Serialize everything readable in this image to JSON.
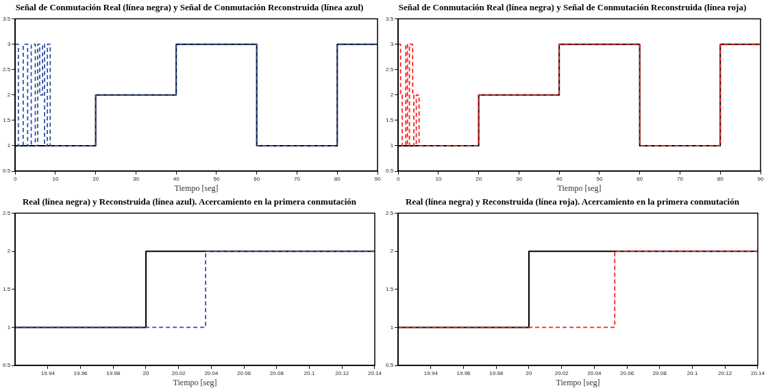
{
  "chart_data": [
    {
      "type": "step",
      "title": "Señal de Conmutación Real (línea negra) y Señal de Conmutación Reconstruida (línea azul)",
      "xlabel": "Tiempo [seg]",
      "xlim": [
        0,
        90
      ],
      "xticks": [
        0,
        10,
        20,
        30,
        40,
        50,
        60,
        70,
        80,
        90
      ],
      "ylim": [
        0.5,
        3.5
      ],
      "yticks": [
        0.5,
        1,
        1.5,
        2,
        2.5,
        3,
        3.5
      ],
      "grid": false,
      "legend": false,
      "marker": "none",
      "series": [
        {
          "color": "#000000",
          "line_style": "solid",
          "x": [
            0,
            20,
            40,
            60,
            80,
            90
          ],
          "values": [
            1,
            2,
            3,
            1,
            3,
            3
          ]
        },
        {
          "color": "#2f4fa8",
          "line_style": "dashed",
          "x": [
            0,
            0.8,
            2,
            3.1,
            4,
            5,
            5.6,
            6.1,
            6.8,
            7.3,
            8,
            8.7,
            9.9,
            20,
            40,
            60,
            80,
            90
          ],
          "values": [
            3,
            1,
            3,
            1,
            3,
            1,
            3,
            2,
            3,
            1,
            3,
            1,
            1,
            2,
            3,
            1,
            3,
            3
          ]
        }
      ]
    },
    {
      "type": "step",
      "title": "Señal de Conmutación Real (línea negra) y Señal de Conmutación Reconstruida (línea roja)",
      "xlabel": "Tiempo [seg]",
      "xlim": [
        0,
        90
      ],
      "xticks": [
        0,
        10,
        20,
        30,
        40,
        50,
        60,
        70,
        80,
        90
      ],
      "ylim": [
        0.5,
        3.5
      ],
      "yticks": [
        0.5,
        1,
        1.5,
        2,
        2.5,
        3,
        3.5
      ],
      "grid": false,
      "legend": false,
      "marker": "none",
      "series": [
        {
          "color": "#000000",
          "line_style": "solid",
          "x": [
            0,
            20,
            40,
            60,
            80,
            90
          ],
          "values": [
            1,
            2,
            3,
            1,
            3,
            3
          ]
        },
        {
          "color": "#ff1a1a",
          "line_style": "dashed",
          "x": [
            0,
            0.6,
            1,
            1.9,
            2.3,
            2.8,
            3.6,
            3.9,
            4.5,
            5.2,
            20,
            40,
            60,
            80,
            90
          ],
          "values": [
            3,
            2,
            1,
            3,
            1,
            3,
            2,
            1,
            2,
            1,
            2,
            3,
            1,
            3,
            3
          ]
        }
      ]
    },
    {
      "type": "step",
      "title": "Real (línea negra) y Reconstruida (línea azul). Acercamiento en la primera conmutación",
      "xlabel": "Tiempo [seg]",
      "xlim": [
        19.92,
        20.14
      ],
      "xticks": [
        19.94,
        19.96,
        19.98,
        20,
        20.02,
        20.04,
        20.06,
        20.08,
        20.1,
        20.12,
        20.14
      ],
      "ylim": [
        0.5,
        2.5
      ],
      "yticks": [
        0.5,
        1,
        1.5,
        2,
        2.5
      ],
      "grid": false,
      "legend": false,
      "marker": "none",
      "series": [
        {
          "color": "#000000",
          "line_style": "solid",
          "x": [
            19.92,
            20,
            20.14
          ],
          "values": [
            1,
            2,
            2
          ]
        },
        {
          "color": "#2f4fa8",
          "line_style": "dashed",
          "x": [
            19.92,
            20.0365,
            20.14
          ],
          "values": [
            1,
            2,
            2
          ]
        }
      ]
    },
    {
      "type": "step",
      "title": "Real (línea negra) y Reconstruida (línea roja). Acercamiento en la primera conmutación",
      "xlabel": "Tiempo [seg]",
      "xlim": [
        19.92,
        20.14
      ],
      "xticks": [
        19.94,
        19.96,
        19.98,
        20,
        20.02,
        20.04,
        20.06,
        20.08,
        20.1,
        20.12,
        20.14
      ],
      "ylim": [
        0.5,
        2.5
      ],
      "yticks": [
        0.5,
        1,
        1.5,
        2,
        2.5
      ],
      "grid": false,
      "legend": false,
      "marker": "none",
      "series": [
        {
          "color": "#000000",
          "line_style": "solid",
          "x": [
            19.92,
            20,
            20.14
          ],
          "values": [
            1,
            2,
            2
          ]
        },
        {
          "color": "#ff1a1a",
          "line_style": "dashed",
          "x": [
            19.92,
            20.0525,
            20.14
          ],
          "values": [
            1,
            2,
            2
          ]
        }
      ]
    }
  ]
}
